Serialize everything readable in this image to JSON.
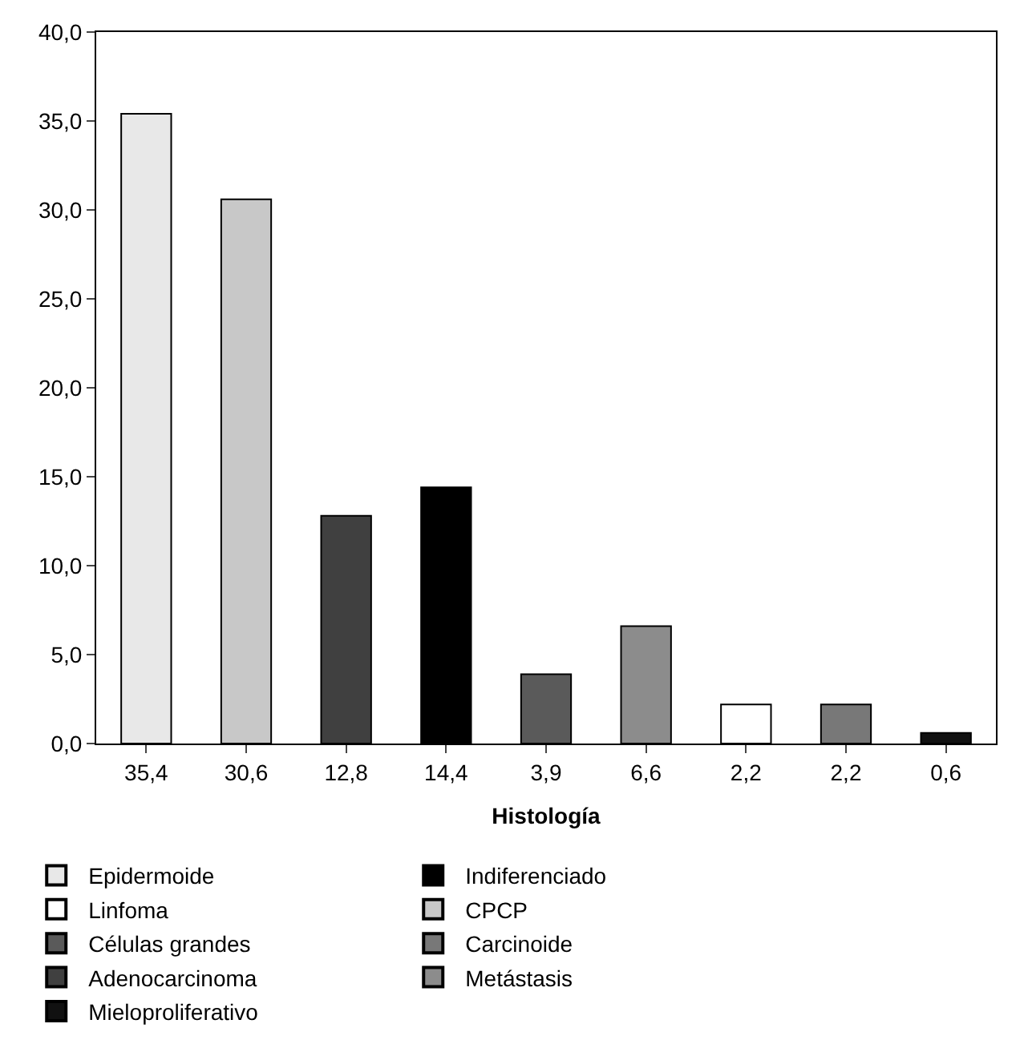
{
  "chart_data": {
    "type": "bar",
    "xlabel": "Histología",
    "categories": [
      "35,4",
      "30,6",
      "12,8",
      "14,4",
      "3,9",
      "6,6",
      "2,2",
      "2,2",
      "0,6"
    ],
    "series": [
      {
        "name": "Epidermoide",
        "color": "#e8e8e8",
        "values": [
          35.4,
          null,
          null,
          null,
          null,
          null,
          null,
          null,
          null
        ]
      },
      {
        "name": "CPCP",
        "color": "#c8c8c8",
        "values": [
          null,
          30.6,
          null,
          null,
          null,
          null,
          null,
          null,
          null
        ]
      },
      {
        "name": "Adenocarcinoma",
        "color": "#404040",
        "values": [
          null,
          null,
          12.8,
          null,
          null,
          null,
          null,
          null,
          null
        ]
      },
      {
        "name": "Indiferenciado",
        "color": "#000000",
        "values": [
          null,
          null,
          null,
          14.4,
          null,
          null,
          null,
          null,
          null
        ]
      },
      {
        "name": "Células grandes",
        "color": "#5a5a5a",
        "values": [
          null,
          null,
          null,
          null,
          3.9,
          null,
          null,
          null,
          null
        ]
      },
      {
        "name": "Metástasis",
        "color": "#8c8c8c",
        "values": [
          null,
          null,
          null,
          null,
          null,
          6.6,
          null,
          null,
          null
        ]
      },
      {
        "name": "Linfoma",
        "color": "#ffffff",
        "values": [
          null,
          null,
          null,
          null,
          null,
          null,
          2.2,
          null,
          null
        ]
      },
      {
        "name": "Carcinoide",
        "color": "#787878",
        "values": [
          null,
          null,
          null,
          null,
          null,
          null,
          null,
          2.2,
          null
        ]
      },
      {
        "name": "Mieloproliferativo",
        "color": "#111111",
        "values": [
          null,
          null,
          null,
          null,
          null,
          null,
          null,
          null,
          0.6
        ]
      }
    ],
    "ylim": [
      0,
      40
    ],
    "yticks": [
      {
        "value": 0,
        "label": "0,0"
      },
      {
        "value": 5,
        "label": "5,0"
      },
      {
        "value": 10,
        "label": "10,0"
      },
      {
        "value": 15,
        "label": "15,0"
      },
      {
        "value": 20,
        "label": "20,0"
      },
      {
        "value": 25,
        "label": "25,0"
      },
      {
        "value": 30,
        "label": "30,0"
      },
      {
        "value": 35,
        "label": "35,0"
      },
      {
        "value": 40,
        "label": "40,0"
      }
    ],
    "grid": false,
    "legend": "bottom"
  }
}
